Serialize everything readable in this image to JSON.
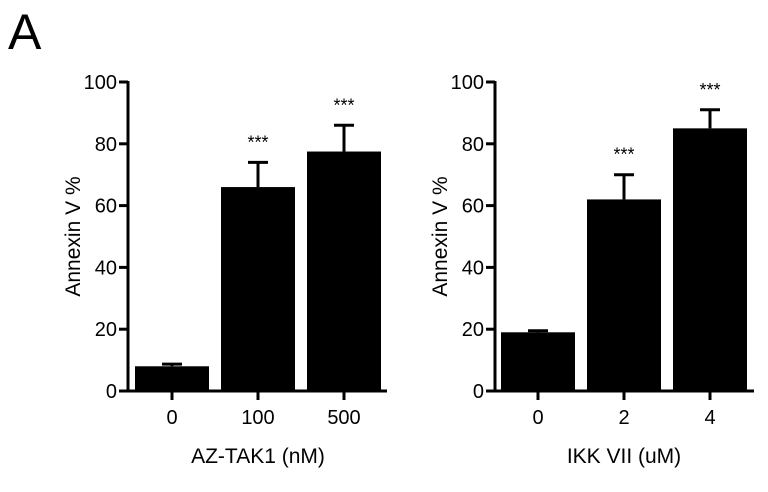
{
  "panel_label": "A",
  "chart_data": [
    {
      "type": "bar",
      "title": "",
      "xlabel": "AZ-TAK1 (nM)",
      "ylabel": "Annexin V %",
      "categories": [
        "0",
        "100",
        "500"
      ],
      "values": [
        8,
        66,
        77.5
      ],
      "error_upper": [
        0.7,
        8,
        8.5
      ],
      "significance": [
        "",
        "***",
        "***"
      ],
      "ylim": [
        0,
        100
      ],
      "yticks": [
        0,
        20,
        40,
        60,
        80,
        100
      ],
      "grid": false,
      "legend": null,
      "bar_color": "#000000"
    },
    {
      "type": "bar",
      "title": "",
      "xlabel": "IKK VII (uM)",
      "ylabel": "Annexin V %",
      "categories": [
        "0",
        "2",
        "4"
      ],
      "values": [
        19,
        62,
        85
      ],
      "error_upper": [
        0.5,
        8,
        6
      ],
      "significance": [
        "",
        "***",
        "***"
      ],
      "ylim": [
        0,
        100
      ],
      "yticks": [
        0,
        20,
        40,
        60,
        80,
        100
      ],
      "grid": false,
      "legend": null,
      "bar_color": "#000000"
    }
  ]
}
